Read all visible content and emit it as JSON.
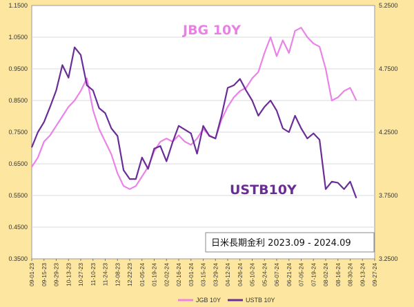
{
  "chart_data": {
    "type": "line",
    "subtitle": "日米長期金利 2023.09 - 2024.09",
    "annotations": [
      "JBG 10Y",
      "USTB10Y"
    ],
    "left_axis": {
      "ylim": [
        0.35,
        1.15
      ],
      "ticks": [
        "0.3500",
        "0.4500",
        "0.5500",
        "0.6500",
        "0.7500",
        "0.8500",
        "0.9500",
        "1.0500",
        "1.1500"
      ]
    },
    "right_axis": {
      "ylim": [
        3.25,
        5.25
      ],
      "ticks": [
        "3.2500",
        "3.7500",
        "4.2500",
        "4.7500",
        "5.2500"
      ]
    },
    "x_ticks": [
      "09-01-23",
      "09-15-23",
      "09-29-23",
      "10-13-23",
      "10-27-23",
      "11-10-23",
      "11-24-23",
      "12-08-23",
      "12-22-23",
      "01-05-24",
      "01-19-24",
      "02-02-24",
      "02-16-24",
      "03-01-24",
      "03-15-24",
      "03-29-24",
      "04-12-24",
      "04-26-24",
      "05-10-24",
      "05-24-24",
      "06-07-24",
      "06-21-24",
      "07-05-24",
      "07-19-24",
      "08-02-24",
      "08-16-24",
      "08-30-24",
      "09-13-24",
      "09-27-24"
    ],
    "grid": true,
    "legend_placement": "bottom",
    "series": [
      {
        "name": "JGB 10Y",
        "axis": "left",
        "color": "#ea82e8",
        "x": [
          "09-01-23",
          "09-08-23",
          "09-15-23",
          "09-22-23",
          "09-29-23",
          "10-06-23",
          "10-13-23",
          "10-20-23",
          "10-27-23",
          "11-03-23",
          "11-10-23",
          "11-17-23",
          "11-24-23",
          "12-01-23",
          "12-08-23",
          "12-15-23",
          "12-22-23",
          "12-29-23",
          "01-05-24",
          "01-12-24",
          "01-19-24",
          "01-26-24",
          "02-02-24",
          "02-09-24",
          "02-16-24",
          "02-23-24",
          "03-01-24",
          "03-08-24",
          "03-15-24",
          "03-22-24",
          "03-29-24",
          "04-05-24",
          "04-12-24",
          "04-19-24",
          "04-26-24",
          "05-03-24",
          "05-10-24",
          "05-17-24",
          "05-24-24",
          "05-31-24",
          "06-07-24",
          "06-14-24",
          "06-21-24",
          "06-28-24",
          "07-05-24",
          "07-12-24",
          "07-19-24",
          "07-26-24",
          "08-02-24",
          "08-09-24",
          "08-16-24",
          "08-23-24",
          "08-30-24",
          "09-06-24"
        ],
        "values": [
          0.64,
          0.67,
          0.72,
          0.74,
          0.77,
          0.8,
          0.83,
          0.85,
          0.88,
          0.92,
          0.82,
          0.76,
          0.72,
          0.68,
          0.62,
          0.58,
          0.57,
          0.58,
          0.61,
          0.64,
          0.69,
          0.72,
          0.73,
          0.72,
          0.74,
          0.72,
          0.71,
          0.73,
          0.76,
          0.74,
          0.73,
          0.79,
          0.83,
          0.86,
          0.88,
          0.89,
          0.92,
          0.94,
          1.0,
          1.05,
          0.99,
          1.04,
          1.0,
          1.07,
          1.08,
          1.05,
          1.03,
          1.02,
          0.95,
          0.85,
          0.86,
          0.88,
          0.89,
          0.85
        ]
      },
      {
        "name": "USTB 10Y",
        "axis": "right",
        "color": "#6a2c96",
        "x": [
          "09-01-23",
          "09-08-23",
          "09-15-23",
          "09-22-23",
          "09-29-23",
          "10-06-23",
          "10-13-23",
          "10-20-23",
          "10-27-23",
          "11-03-23",
          "11-10-23",
          "11-17-23",
          "11-24-23",
          "12-01-23",
          "12-08-23",
          "12-15-23",
          "12-22-23",
          "12-29-23",
          "01-05-24",
          "01-12-24",
          "01-19-24",
          "01-26-24",
          "02-02-24",
          "02-09-24",
          "02-16-24",
          "02-23-24",
          "03-01-24",
          "03-08-24",
          "03-15-24",
          "03-22-24",
          "03-29-24",
          "04-05-24",
          "04-12-24",
          "04-19-24",
          "04-26-24",
          "05-03-24",
          "05-10-24",
          "05-17-24",
          "05-24-24",
          "05-31-24",
          "06-07-24",
          "06-14-24",
          "06-21-24",
          "06-28-24",
          "07-05-24",
          "07-12-24",
          "07-19-24",
          "07-26-24",
          "08-02-24",
          "08-09-24",
          "08-16-24",
          "08-23-24",
          "08-30-24",
          "09-06-24"
        ],
        "values": [
          4.13,
          4.25,
          4.33,
          4.45,
          4.58,
          4.78,
          4.68,
          4.92,
          4.86,
          4.62,
          4.58,
          4.44,
          4.4,
          4.28,
          4.22,
          3.95,
          3.88,
          3.88,
          4.05,
          3.96,
          4.12,
          4.14,
          4.02,
          4.17,
          4.3,
          4.27,
          4.24,
          4.08,
          4.3,
          4.22,
          4.2,
          4.38,
          4.6,
          4.62,
          4.67,
          4.58,
          4.5,
          4.38,
          4.45,
          4.5,
          4.42,
          4.28,
          4.25,
          4.38,
          4.28,
          4.2,
          4.24,
          4.19,
          3.8,
          3.86,
          3.85,
          3.8,
          3.86,
          3.73
        ]
      }
    ]
  },
  "legend": [
    {
      "label": "JGB 10Y",
      "color": "#ea82e8"
    },
    {
      "label": "USTB 10Y",
      "color": "#6a2c96"
    }
  ]
}
